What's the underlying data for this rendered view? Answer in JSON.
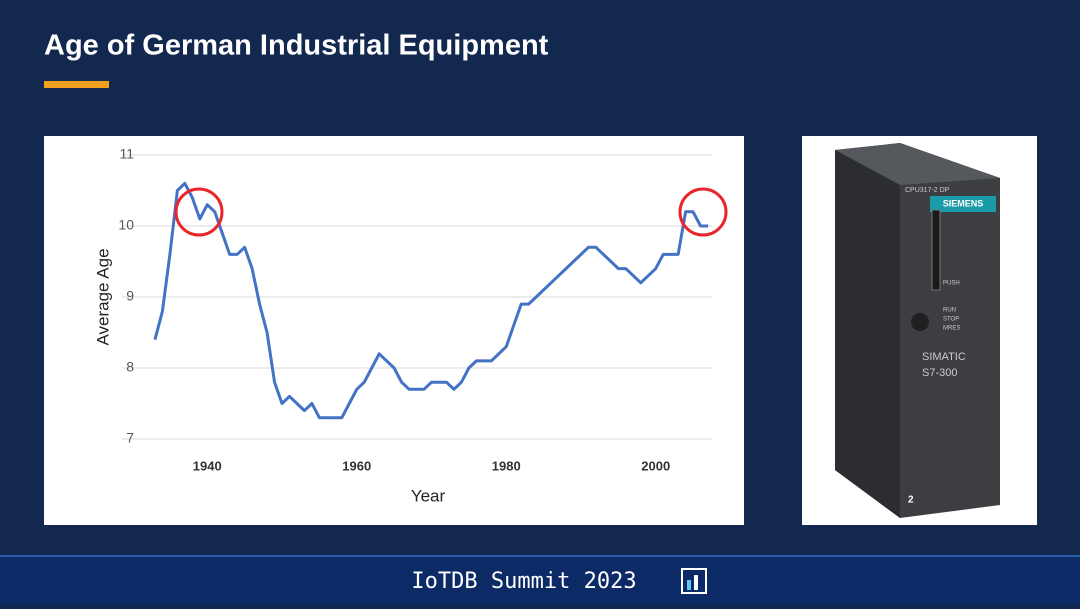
{
  "slide": {
    "title": "Age of German Industrial Equipment",
    "footer": "IoTDB Summit 2023"
  },
  "chart_data": {
    "type": "line",
    "x_label": "Year",
    "y_label": "Average Age",
    "x": [
      1933,
      1934,
      1935,
      1936,
      1937,
      1938,
      1939,
      1940,
      1941,
      1942,
      1943,
      1944,
      1945,
      1946,
      1947,
      1948,
      1949,
      1950,
      1951,
      1952,
      1953,
      1954,
      1955,
      1956,
      1957,
      1958,
      1959,
      1960,
      1961,
      1962,
      1963,
      1964,
      1965,
      1966,
      1967,
      1968,
      1969,
      1970,
      1971,
      1972,
      1973,
      1974,
      1975,
      1976,
      1977,
      1978,
      1979,
      1980,
      1981,
      1982,
      1983,
      1984,
      1985,
      1986,
      1987,
      1988,
      1989,
      1990,
      1991,
      1992,
      1993,
      1994,
      1995,
      1996,
      1997,
      1998,
      1999,
      2000,
      2001,
      2002,
      2003,
      2004,
      2005,
      2006,
      2007
    ],
    "values": [
      8.4,
      8.8,
      9.6,
      10.5,
      10.6,
      10.4,
      10.1,
      10.3,
      10.2,
      9.9,
      9.6,
      9.6,
      9.7,
      9.4,
      8.9,
      8.5,
      7.8,
      7.5,
      7.6,
      7.5,
      7.4,
      7.5,
      7.3,
      7.3,
      7.3,
      7.3,
      7.5,
      7.7,
      7.8,
      8.0,
      8.2,
      8.1,
      8.0,
      7.8,
      7.7,
      7.7,
      7.7,
      7.8,
      7.8,
      7.8,
      7.7,
      7.8,
      8.0,
      8.1,
      8.1,
      8.1,
      8.2,
      8.3,
      8.6,
      8.9,
      8.9,
      9.0,
      9.1,
      9.2,
      9.3,
      9.4,
      9.5,
      9.6,
      9.7,
      9.7,
      9.6,
      9.5,
      9.4,
      9.4,
      9.3,
      9.2,
      9.3,
      9.4,
      9.6,
      9.6,
      9.6,
      10.2,
      10.2,
      10.0,
      10.0
    ],
    "color": "#4472c4",
    "xlim": [
      1931,
      2009
    ],
    "xticks": [
      1940,
      1960,
      1980,
      2000
    ],
    "ylim": [
      7,
      11
    ],
    "yticks": [
      7,
      8,
      9,
      10,
      11
    ],
    "grid": true
  },
  "photo": {
    "cpu": "CPU317-2 DP",
    "brand": "SIEMENS",
    "push": "PUSH",
    "switch": [
      "RUN",
      "STOP",
      "MRES"
    ],
    "model": [
      "SIMATIC",
      "S7-300"
    ],
    "slot": "2"
  }
}
